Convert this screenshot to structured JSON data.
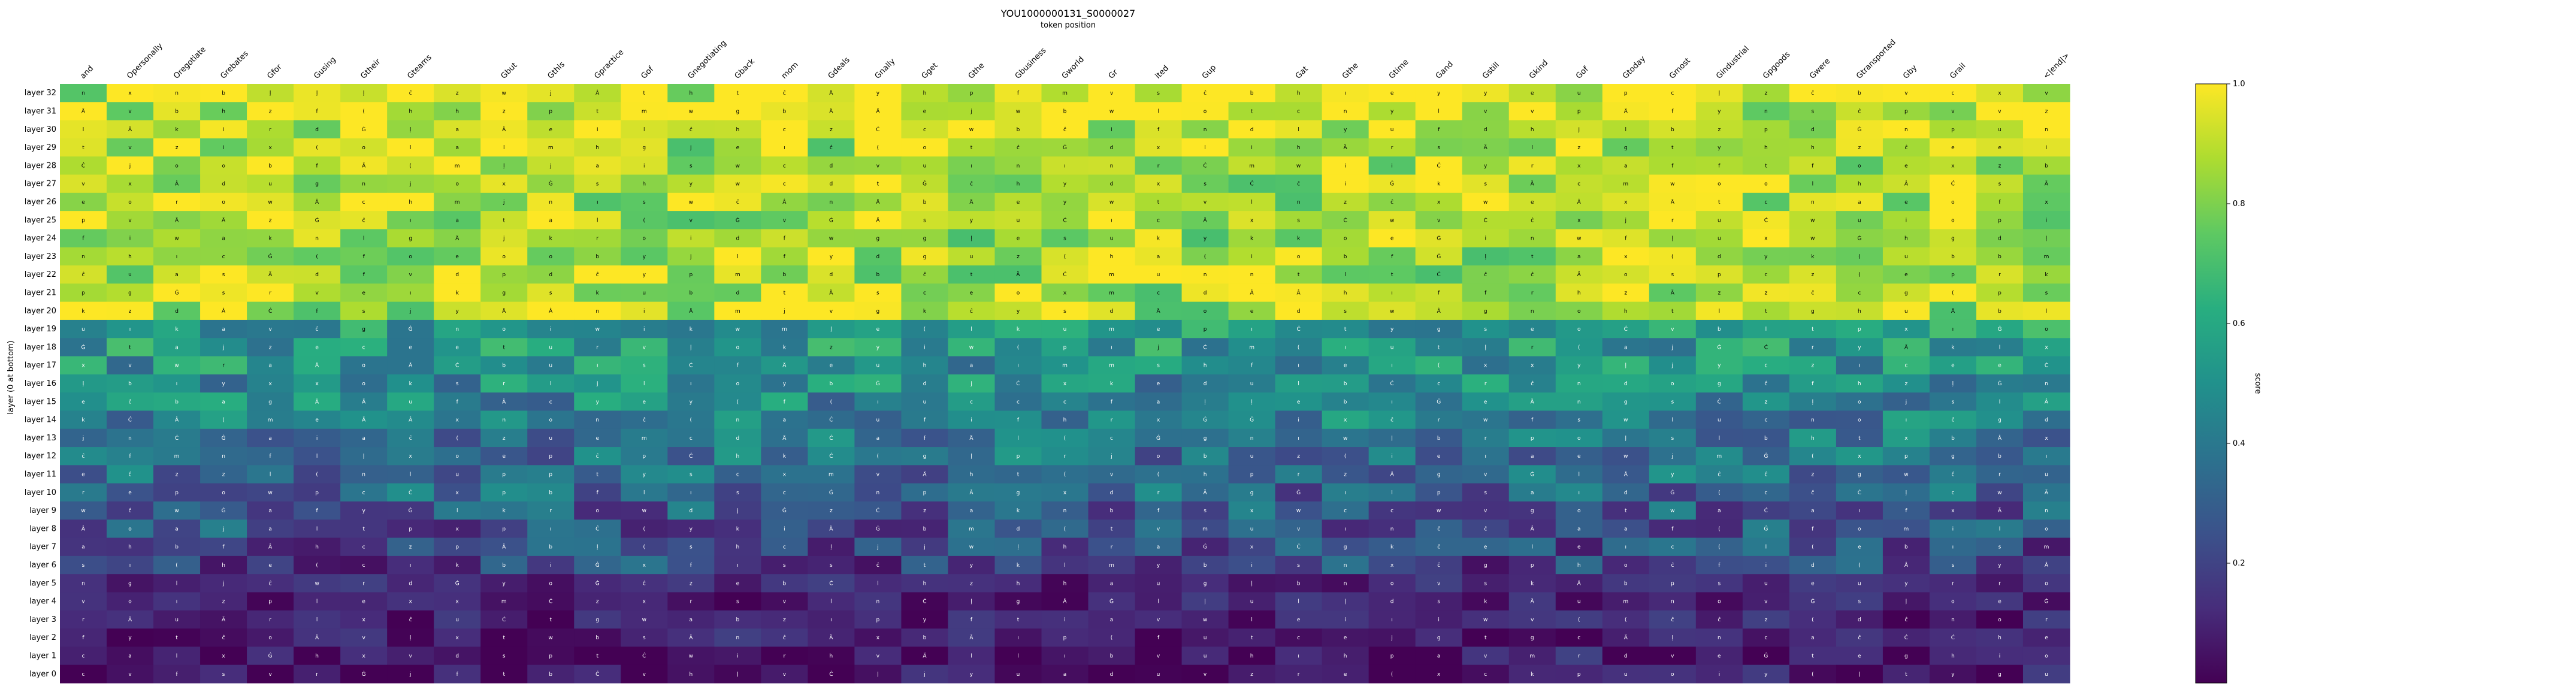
{
  "chart_data": {
    "type": "heatmap",
    "title": "YOU1000000131_S0000027",
    "subtitle": "token position",
    "ylabel": "layer (0 at bottom)",
    "colorbar_label": "score",
    "colorbar_ticks": [
      0.2,
      0.4,
      0.6,
      0.8,
      1.0
    ],
    "vmin": 0.0,
    "vmax": 1.0,
    "colormap": "viridis",
    "x_tokens": [
      "and",
      "Opersonally",
      "Oregotiate",
      "Grebates",
      "Gfor",
      "Gusing",
      "Gtheir",
      "Gteams",
      "",
      "Gbut",
      "Gthis",
      "Gpractice",
      "Gof",
      "Gnegotiating",
      "Gback",
      "mom",
      "Gdeals",
      "Gnally",
      "Gget",
      "Gthe",
      "Gbusiness",
      "Gworld",
      "Gr",
      "ited",
      "Gup",
      "",
      "Gat",
      "Gthe",
      "Gtime",
      "Gand",
      "Gstill",
      "Gkind",
      "Gof",
      "Gtoday",
      "Gmost",
      "Gindustrial",
      "Gpgoods",
      "Gwere",
      "Gtransported",
      "Gby",
      "Grail",
      "",
      "<|end|>"
    ],
    "y_layers": [
      "layer 32",
      "layer 31",
      "layer 30",
      "layer 29",
      "layer 28",
      "layer 27",
      "layer 26",
      "layer 25",
      "layer 24",
      "layer 23",
      "layer 22",
      "layer 21",
      "layer 20",
      "layer 19",
      "layer 18",
      "layer 17",
      "layer 16",
      "layer 15",
      "layer 14",
      "layer 13",
      "layer 12",
      "layer 11",
      "layer 10",
      "layer 9",
      "layer 8",
      "layer 7",
      "layer 6",
      "layer 5",
      "layer 4",
      "layer 3",
      "layer 2",
      "layer 1",
      "layer 0"
    ],
    "cell_glyphs": [
      "Ä",
      "Ġ",
      "Ċ",
      "(",
      "ı",
      "ĉ",
      "ļ",
      "Â",
      "o",
      "s",
      "t",
      "a",
      "e",
      "i",
      "n",
      "l",
      "d",
      "c",
      "m",
      "w",
      "v",
      "u",
      "r",
      "b",
      "f",
      "k",
      "y",
      "p",
      "g",
      "h",
      "x",
      "z",
      "j"
    ]
  }
}
